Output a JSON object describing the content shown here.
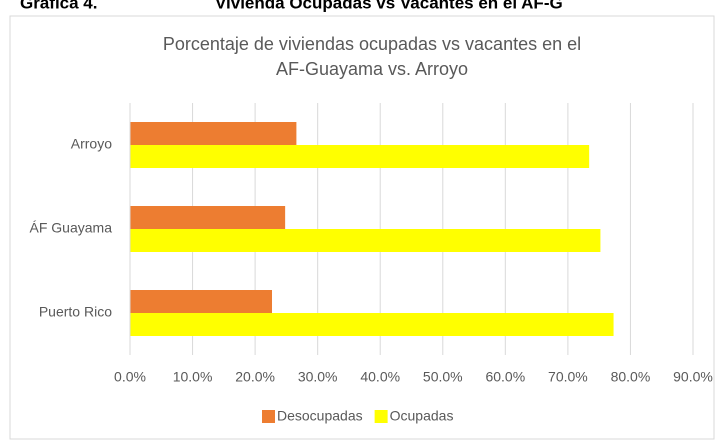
{
  "heading": {
    "label": "Gráfica 4.",
    "title": "Vivienda Ocupadas vs Vacantes en el AF-G"
  },
  "chart_data": {
    "type": "hbar",
    "title": [
      "Porcentaje de viviendas ocupadas vs vacantes en el",
      "AF-Guayama vs. Arroyo"
    ],
    "categories": [
      "Arroyo",
      "ÁF Guayama",
      "Puerto Rico"
    ],
    "series": [
      {
        "name": "Desocupadas",
        "color": "#ed7d31",
        "values": [
          26.6,
          24.8,
          22.7
        ]
      },
      {
        "name": "Ocupadas",
        "color": "#ffff00",
        "values": [
          73.4,
          75.2,
          77.3
        ]
      }
    ],
    "xlim": [
      0,
      90
    ],
    "xticks": [
      {
        "value": 0,
        "label": "0.0%"
      },
      {
        "value": 10,
        "label": "10.0%"
      },
      {
        "value": 20,
        "label": "20.0%"
      },
      {
        "value": 30,
        "label": "30.0%"
      },
      {
        "value": 40,
        "label": "40.0%"
      },
      {
        "value": 50,
        "label": "50.0%"
      },
      {
        "value": 60,
        "label": "60.0%"
      },
      {
        "value": 70,
        "label": "70.0%"
      },
      {
        "value": 80,
        "label": "80.0%"
      },
      {
        "value": 90,
        "label": "90.0%"
      }
    ],
    "grid": true,
    "legend": "bottom"
  }
}
